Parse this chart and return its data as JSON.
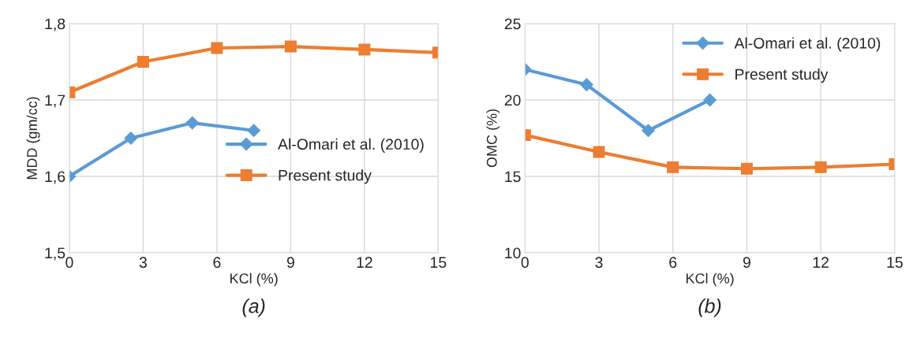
{
  "chart_data": [
    {
      "type": "line",
      "xlabel": "KCl (%)",
      "ylabel": "MDD (gm/cc)",
      "annotations": [
        "(a)"
      ],
      "xlim": [
        0,
        15
      ],
      "xticks": [
        0,
        3,
        6,
        9,
        12,
        15
      ],
      "ylim": [
        1.5,
        1.8
      ],
      "yticks": [
        {
          "value": 1.5,
          "label": "1,5"
        },
        {
          "value": 1.6,
          "label": "1,6"
        },
        {
          "value": 1.7,
          "label": "1,7"
        },
        {
          "value": 1.8,
          "label": "1,8"
        }
      ],
      "grid": true,
      "legend": "right",
      "series": [
        {
          "name": "Al-Omari et al. (2010)",
          "color": "#5b9bd5",
          "marker": "diamond",
          "x": [
            0,
            2.5,
            5,
            7.5
          ],
          "values": [
            1.6,
            1.65,
            1.67,
            1.66
          ]
        },
        {
          "name": "Present study",
          "color": "#ed7d31",
          "marker": "square",
          "x": [
            0,
            3,
            6,
            9,
            12,
            15
          ],
          "values": [
            1.71,
            1.75,
            1.768,
            1.77,
            1.766,
            1.762
          ]
        }
      ]
    },
    {
      "type": "line",
      "xlabel": "KCl (%)",
      "ylabel": "OMC (%)",
      "annotations": [
        "(b)"
      ],
      "xlim": [
        0,
        15
      ],
      "xticks": [
        0,
        3,
        6,
        9,
        12,
        15
      ],
      "ylim": [
        10,
        25
      ],
      "yticks": [
        10,
        15,
        20,
        25
      ],
      "grid": true,
      "legend": "top right",
      "series": [
        {
          "name": "Al-Omari et al. (2010)",
          "color": "#5b9bd5",
          "marker": "diamond",
          "x": [
            0,
            2.5,
            5,
            7.5
          ],
          "values": [
            22,
            21,
            18,
            20
          ]
        },
        {
          "name": "Present study",
          "color": "#ed7d31",
          "marker": "square",
          "x": [
            0,
            3,
            6,
            9,
            12,
            15
          ],
          "values": [
            17.7,
            16.6,
            15.6,
            15.5,
            15.6,
            15.8
          ]
        }
      ]
    }
  ]
}
